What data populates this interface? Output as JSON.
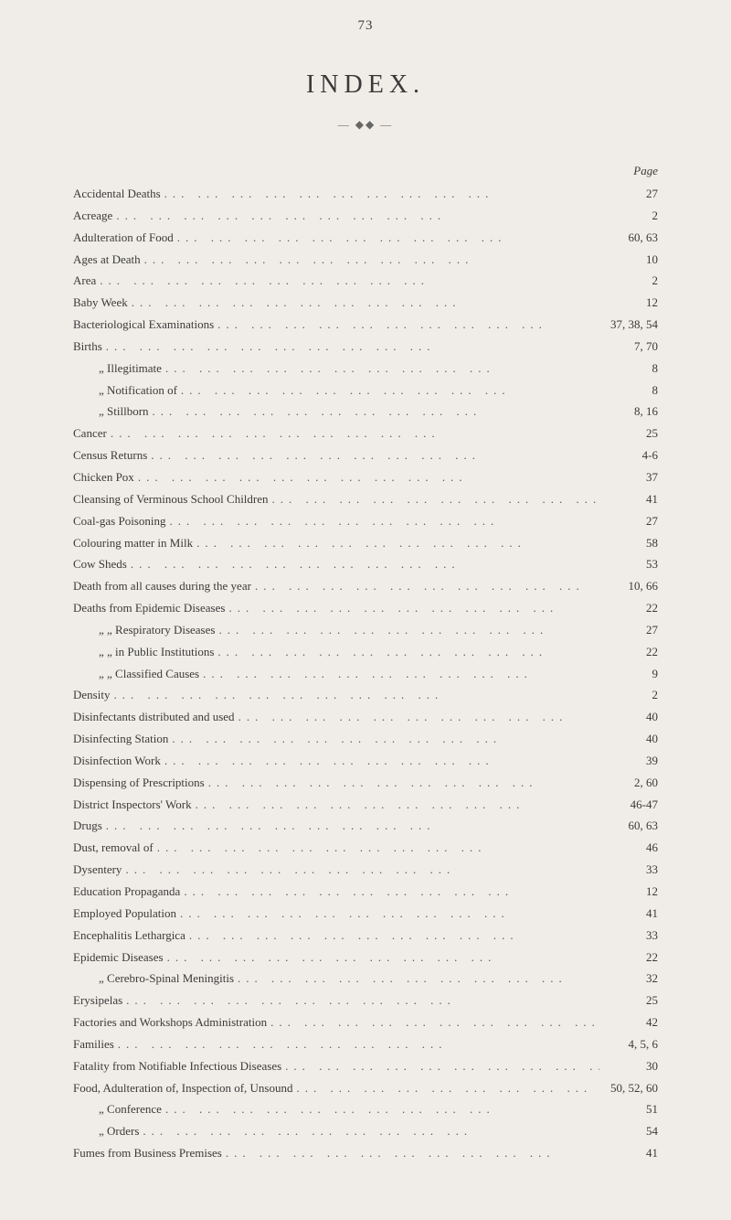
{
  "page_number": "73",
  "title": "INDEX.",
  "page_header": "Page",
  "colors": {
    "background": "#f0ede8",
    "text": "#3a3a3a",
    "dots": "#555555"
  },
  "typography": {
    "body_fontsize": 13,
    "title_fontsize": 28,
    "title_letterspacing": 6
  },
  "entries": [
    {
      "label": "Accidental Deaths",
      "page": "27",
      "indent": 0
    },
    {
      "label": "Acreage",
      "page": "2",
      "indent": 0
    },
    {
      "label": "Adulteration of Food",
      "page": "60, 63",
      "indent": 0
    },
    {
      "label": "Ages at Death",
      "page": "10",
      "indent": 0
    },
    {
      "label": "Area",
      "page": "2",
      "indent": 0
    },
    {
      "label": "Baby Week",
      "page": "12",
      "indent": 0
    },
    {
      "label": "Bacteriological Examinations",
      "page": "37, 38, 54",
      "indent": 0
    },
    {
      "label": "Births",
      "page": "7, 70",
      "indent": 0
    },
    {
      "label": "„    Illegitimate",
      "page": "8",
      "indent": 1
    },
    {
      "label": "„    Notification of",
      "page": "8",
      "indent": 1
    },
    {
      "label": "„    Stillborn",
      "page": "8, 16",
      "indent": 1
    },
    {
      "label": "Cancer",
      "page": "25",
      "indent": 0
    },
    {
      "label": "Census Returns",
      "page": "4-6",
      "indent": 0
    },
    {
      "label": "Chicken Pox",
      "page": "37",
      "indent": 0
    },
    {
      "label": "Cleansing of Verminous School Children",
      "page": "41",
      "indent": 0
    },
    {
      "label": "Coal-gas Poisoning",
      "page": "27",
      "indent": 0
    },
    {
      "label": "Colouring matter in Milk",
      "page": "58",
      "indent": 0
    },
    {
      "label": "Cow Sheds",
      "page": "53",
      "indent": 0
    },
    {
      "label": "Death from all causes during the year",
      "page": "10, 66",
      "indent": 0
    },
    {
      "label": "Deaths from Epidemic Diseases",
      "page": "22",
      "indent": 0
    },
    {
      "label": "„         „    Respiratory Diseases",
      "page": "27",
      "indent": 1
    },
    {
      "label": "„         „    in Public Institutions",
      "page": "22",
      "indent": 1
    },
    {
      "label": "„         „    Classified Causes",
      "page": "9",
      "indent": 1
    },
    {
      "label": "Density",
      "page": "2",
      "indent": 0
    },
    {
      "label": "Disinfectants distributed and used",
      "page": "40",
      "indent": 0
    },
    {
      "label": "Disinfecting Station",
      "page": "40",
      "indent": 0
    },
    {
      "label": "Disinfection Work",
      "page": "39",
      "indent": 0
    },
    {
      "label": "Dispensing of Prescriptions",
      "page": "2, 60",
      "indent": 0
    },
    {
      "label": "District Inspectors' Work",
      "page": "46-47",
      "indent": 0
    },
    {
      "label": "Drugs",
      "page": "60, 63",
      "indent": 0
    },
    {
      "label": "Dust, removal of",
      "page": "46",
      "indent": 0
    },
    {
      "label": "Dysentery",
      "page": "33",
      "indent": 0
    },
    {
      "label": "Education Propaganda",
      "page": "12",
      "indent": 0
    },
    {
      "label": "Employed Population",
      "page": "41",
      "indent": 0
    },
    {
      "label": "Encephalitis Lethargica",
      "page": "33",
      "indent": 0
    },
    {
      "label": "Epidemic Diseases",
      "page": "22",
      "indent": 0
    },
    {
      "label": "„         Cerebro-Spinal Meningitis",
      "page": "32",
      "indent": 1
    },
    {
      "label": "Erysipelas",
      "page": "25",
      "indent": 0
    },
    {
      "label": "Factories and Workshops Administration",
      "page": "42",
      "indent": 0
    },
    {
      "label": "Families",
      "page": "4, 5, 6",
      "indent": 0
    },
    {
      "label": "Fatality from Notifiable Infectious Diseases",
      "page": "30",
      "indent": 0
    },
    {
      "label": "Food, Adulteration of, Inspection of, Unsound",
      "page": "50, 52, 60",
      "indent": 0
    },
    {
      "label": "„    Conference",
      "page": "51",
      "indent": 1
    },
    {
      "label": "„    Orders",
      "page": "54",
      "indent": 1
    },
    {
      "label": "Fumes from Business Premises",
      "page": "41",
      "indent": 0
    }
  ]
}
